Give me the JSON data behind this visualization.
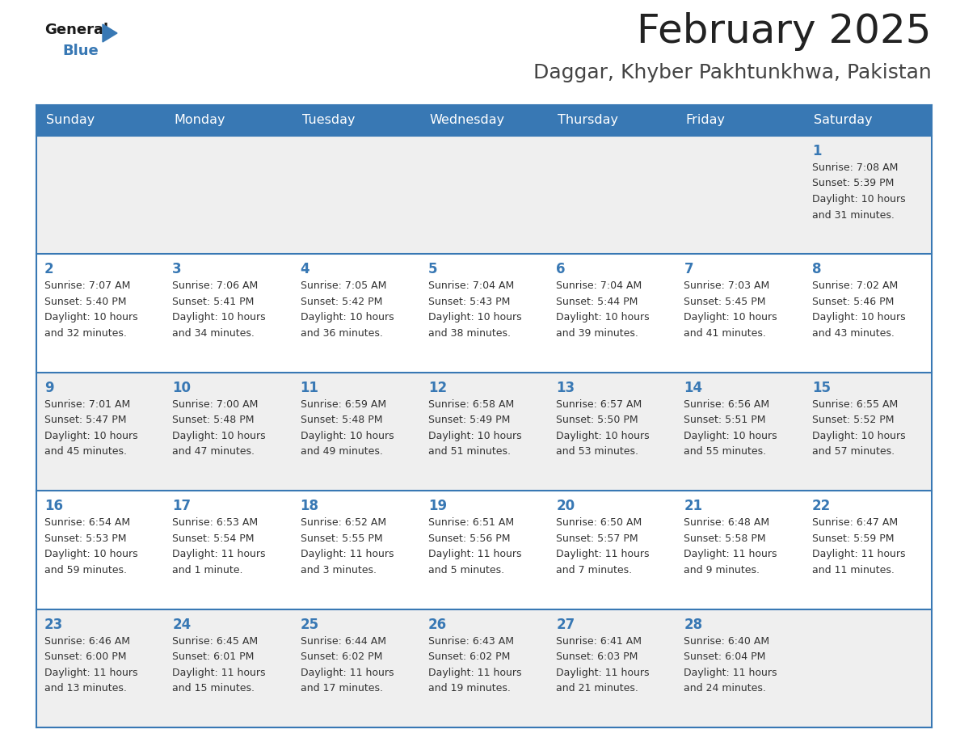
{
  "title": "February 2025",
  "subtitle": "Daggar, Khyber Pakhtunkhwa, Pakistan",
  "header_color": "#3878b4",
  "header_text_color": "#ffffff",
  "row_bg_gray": "#efefef",
  "row_bg_white": "#ffffff",
  "day_number_color": "#3878b4",
  "info_text_color": "#333333",
  "border_color": "#3878b4",
  "separator_color": "#cccccc",
  "days_of_week": [
    "Sunday",
    "Monday",
    "Tuesday",
    "Wednesday",
    "Thursday",
    "Friday",
    "Saturday"
  ],
  "weeks": [
    {
      "days": [
        {
          "day": null,
          "sunrise": null,
          "sunset": null,
          "daylight": null
        },
        {
          "day": null,
          "sunrise": null,
          "sunset": null,
          "daylight": null
        },
        {
          "day": null,
          "sunrise": null,
          "sunset": null,
          "daylight": null
        },
        {
          "day": null,
          "sunrise": null,
          "sunset": null,
          "daylight": null
        },
        {
          "day": null,
          "sunrise": null,
          "sunset": null,
          "daylight": null
        },
        {
          "day": null,
          "sunrise": null,
          "sunset": null,
          "daylight": null
        },
        {
          "day": 1,
          "sunrise": "7:08 AM",
          "sunset": "5:39 PM",
          "daylight": "10 hours\nand 31 minutes."
        }
      ]
    },
    {
      "days": [
        {
          "day": 2,
          "sunrise": "7:07 AM",
          "sunset": "5:40 PM",
          "daylight": "10 hours\nand 32 minutes."
        },
        {
          "day": 3,
          "sunrise": "7:06 AM",
          "sunset": "5:41 PM",
          "daylight": "10 hours\nand 34 minutes."
        },
        {
          "day": 4,
          "sunrise": "7:05 AM",
          "sunset": "5:42 PM",
          "daylight": "10 hours\nand 36 minutes."
        },
        {
          "day": 5,
          "sunrise": "7:04 AM",
          "sunset": "5:43 PM",
          "daylight": "10 hours\nand 38 minutes."
        },
        {
          "day": 6,
          "sunrise": "7:04 AM",
          "sunset": "5:44 PM",
          "daylight": "10 hours\nand 39 minutes."
        },
        {
          "day": 7,
          "sunrise": "7:03 AM",
          "sunset": "5:45 PM",
          "daylight": "10 hours\nand 41 minutes."
        },
        {
          "day": 8,
          "sunrise": "7:02 AM",
          "sunset": "5:46 PM",
          "daylight": "10 hours\nand 43 minutes."
        }
      ]
    },
    {
      "days": [
        {
          "day": 9,
          "sunrise": "7:01 AM",
          "sunset": "5:47 PM",
          "daylight": "10 hours\nand 45 minutes."
        },
        {
          "day": 10,
          "sunrise": "7:00 AM",
          "sunset": "5:48 PM",
          "daylight": "10 hours\nand 47 minutes."
        },
        {
          "day": 11,
          "sunrise": "6:59 AM",
          "sunset": "5:48 PM",
          "daylight": "10 hours\nand 49 minutes."
        },
        {
          "day": 12,
          "sunrise": "6:58 AM",
          "sunset": "5:49 PM",
          "daylight": "10 hours\nand 51 minutes."
        },
        {
          "day": 13,
          "sunrise": "6:57 AM",
          "sunset": "5:50 PM",
          "daylight": "10 hours\nand 53 minutes."
        },
        {
          "day": 14,
          "sunrise": "6:56 AM",
          "sunset": "5:51 PM",
          "daylight": "10 hours\nand 55 minutes."
        },
        {
          "day": 15,
          "sunrise": "6:55 AM",
          "sunset": "5:52 PM",
          "daylight": "10 hours\nand 57 minutes."
        }
      ]
    },
    {
      "days": [
        {
          "day": 16,
          "sunrise": "6:54 AM",
          "sunset": "5:53 PM",
          "daylight": "10 hours\nand 59 minutes."
        },
        {
          "day": 17,
          "sunrise": "6:53 AM",
          "sunset": "5:54 PM",
          "daylight": "11 hours\nand 1 minute."
        },
        {
          "day": 18,
          "sunrise": "6:52 AM",
          "sunset": "5:55 PM",
          "daylight": "11 hours\nand 3 minutes."
        },
        {
          "day": 19,
          "sunrise": "6:51 AM",
          "sunset": "5:56 PM",
          "daylight": "11 hours\nand 5 minutes."
        },
        {
          "day": 20,
          "sunrise": "6:50 AM",
          "sunset": "5:57 PM",
          "daylight": "11 hours\nand 7 minutes."
        },
        {
          "day": 21,
          "sunrise": "6:48 AM",
          "sunset": "5:58 PM",
          "daylight": "11 hours\nand 9 minutes."
        },
        {
          "day": 22,
          "sunrise": "6:47 AM",
          "sunset": "5:59 PM",
          "daylight": "11 hours\nand 11 minutes."
        }
      ]
    },
    {
      "days": [
        {
          "day": 23,
          "sunrise": "6:46 AM",
          "sunset": "6:00 PM",
          "daylight": "11 hours\nand 13 minutes."
        },
        {
          "day": 24,
          "sunrise": "6:45 AM",
          "sunset": "6:01 PM",
          "daylight": "11 hours\nand 15 minutes."
        },
        {
          "day": 25,
          "sunrise": "6:44 AM",
          "sunset": "6:02 PM",
          "daylight": "11 hours\nand 17 minutes."
        },
        {
          "day": 26,
          "sunrise": "6:43 AM",
          "sunset": "6:02 PM",
          "daylight": "11 hours\nand 19 minutes."
        },
        {
          "day": 27,
          "sunrise": "6:41 AM",
          "sunset": "6:03 PM",
          "daylight": "11 hours\nand 21 minutes."
        },
        {
          "day": 28,
          "sunrise": "6:40 AM",
          "sunset": "6:04 PM",
          "daylight": "11 hours\nand 24 minutes."
        },
        {
          "day": null,
          "sunrise": null,
          "sunset": null,
          "daylight": null
        }
      ]
    }
  ],
  "logo_text_general": "General",
  "logo_text_blue": "Blue",
  "logo_color_general": "#1a1a1a",
  "logo_color_blue": "#3878b4",
  "logo_triangle_color": "#3878b4",
  "title_fontsize": 36,
  "subtitle_fontsize": 18,
  "header_fontsize": 11.5,
  "day_number_fontsize": 12,
  "info_fontsize": 9
}
